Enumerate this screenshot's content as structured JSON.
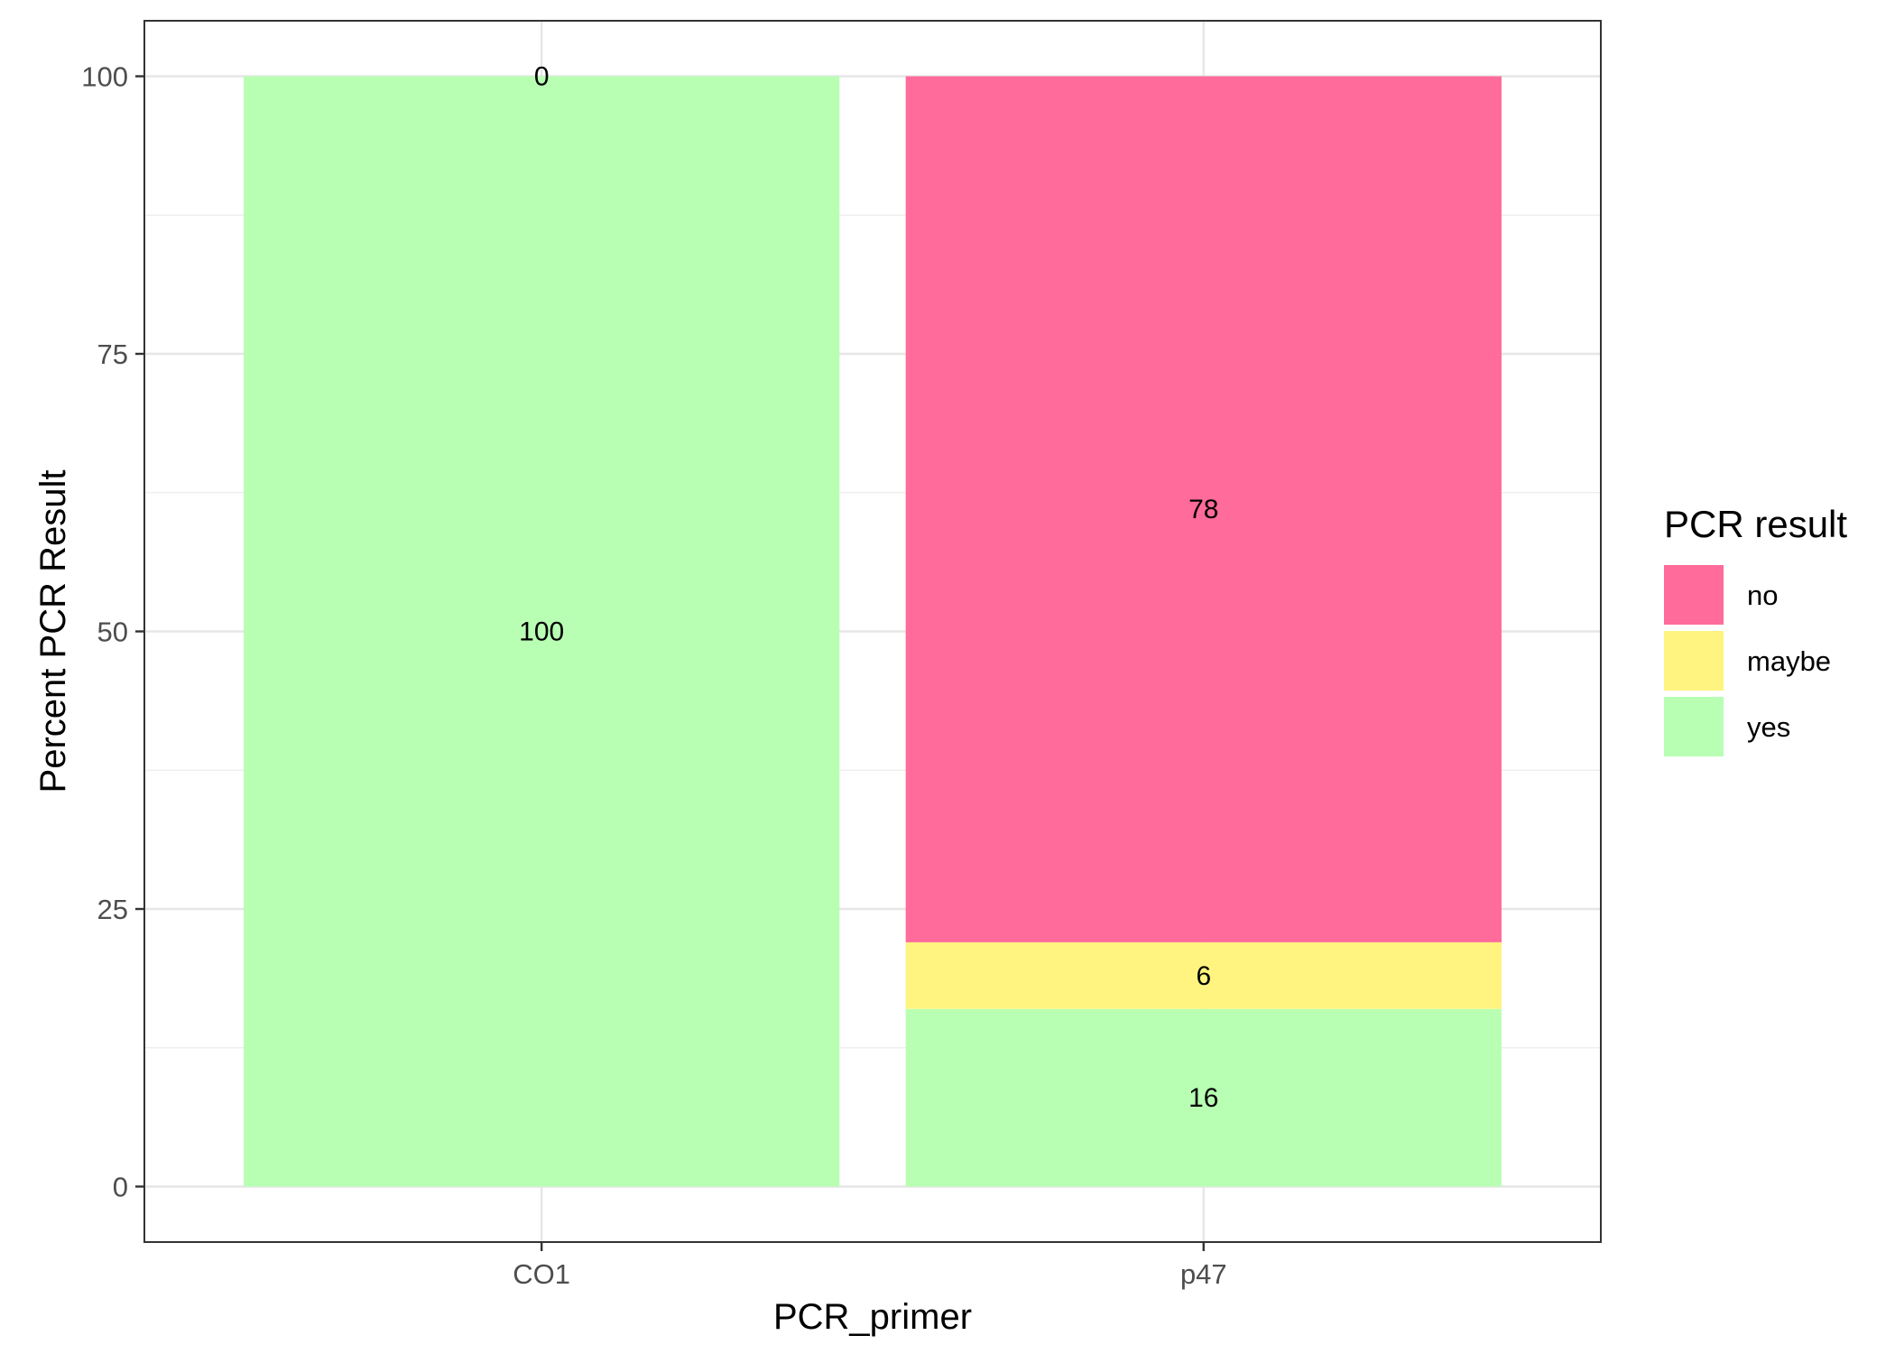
{
  "chart_data": {
    "type": "bar",
    "stacked": true,
    "categories": [
      "CO1",
      "p47"
    ],
    "series": [
      {
        "name": "no",
        "values": [
          0,
          78
        ],
        "color": "#FF6B9A"
      },
      {
        "name": "maybe",
        "values": [
          0,
          6
        ],
        "color": "#FFF47F"
      },
      {
        "name": "yes",
        "values": [
          100,
          16
        ],
        "color": "#B8FFB3"
      }
    ],
    "data_labels": [
      {
        "category": "CO1",
        "series": "no",
        "text": "0"
      },
      {
        "category": "CO1",
        "series": "yes",
        "text": "100"
      },
      {
        "category": "p47",
        "series": "no",
        "text": "78"
      },
      {
        "category": "p47",
        "series": "maybe",
        "text": "6"
      },
      {
        "category": "p47",
        "series": "yes",
        "text": "16"
      }
    ],
    "xlabel": "PCR_primer",
    "ylabel": "Percent PCR Result",
    "yticks": [
      0,
      25,
      50,
      75,
      100
    ],
    "ylim": [
      -5,
      105
    ],
    "grid": true,
    "legend": {
      "title": "PCR result",
      "position": "right",
      "entries": [
        "no",
        "maybe",
        "yes"
      ]
    }
  }
}
